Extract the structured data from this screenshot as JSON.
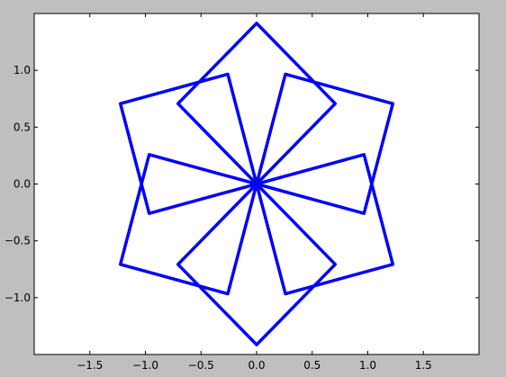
{
  "chart_data": {
    "type": "line",
    "title": "",
    "xlabel": "",
    "ylabel": "",
    "xlim": [
      -2.0,
      2.0
    ],
    "ylim": [
      -1.5,
      1.5
    ],
    "grid": false,
    "x_ticks": [
      -1.5,
      -1.0,
      -0.5,
      0.0,
      0.5,
      1.0,
      1.5
    ],
    "x_tick_labels": [
      "−1.5",
      "−1.0",
      "−0.5",
      "0.0",
      "0.5",
      "1.0",
      "1.5"
    ],
    "y_ticks": [
      1.0,
      0.5,
      0.0,
      -0.5,
      -1.0
    ],
    "y_tick_labels": [
      "1.0",
      "0.5",
      "0.0",
      "−0.5",
      "−1.0"
    ],
    "series": [
      {
        "color": "#0000ff",
        "x": [
          0,
          0.707,
          0,
          -0.707,
          0
        ],
        "y": [
          0,
          0.707,
          1.414,
          0.707,
          0
        ]
      },
      {
        "color": "#0000ff",
        "x": [
          0,
          0.966,
          1.225,
          0.259,
          0
        ],
        "y": [
          0,
          -0.259,
          0.707,
          0.966,
          0
        ]
      },
      {
        "color": "#0000ff",
        "x": [
          0,
          0.259,
          1.225,
          0.966,
          0
        ],
        "y": [
          0,
          -0.966,
          -0.707,
          0.259,
          0
        ]
      },
      {
        "color": "#0000ff",
        "x": [
          0,
          -0.707,
          0,
          0.707,
          0
        ],
        "y": [
          0,
          -0.707,
          -1.414,
          -0.707,
          0
        ]
      },
      {
        "color": "#0000ff",
        "x": [
          0,
          -0.966,
          -1.225,
          -0.259,
          0
        ],
        "y": [
          0,
          0.259,
          -0.707,
          -0.966,
          0
        ]
      },
      {
        "color": "#0000ff",
        "x": [
          0,
          -0.259,
          -1.225,
          -0.966,
          0
        ],
        "y": [
          0,
          0.966,
          0.707,
          -0.259,
          0
        ]
      }
    ]
  }
}
